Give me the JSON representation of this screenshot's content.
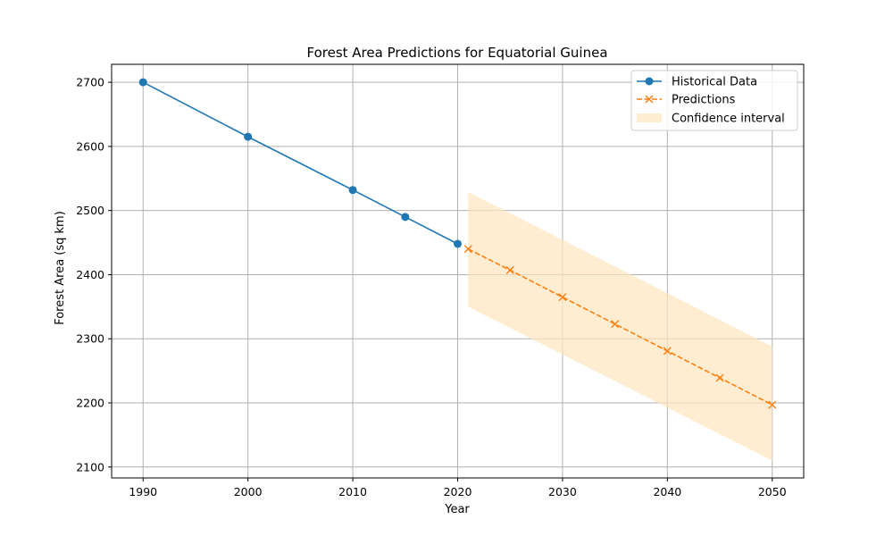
{
  "chart_data": {
    "type": "line",
    "title": "Forest Area Predictions for Equatorial Guinea",
    "xlabel": "Year",
    "ylabel": "Forest Area (sq km)",
    "xlim": [
      1987,
      2053
    ],
    "ylim": [
      2083,
      2728
    ],
    "xticks": [
      1990,
      2000,
      2010,
      2020,
      2030,
      2040,
      2050
    ],
    "yticks": [
      2100,
      2200,
      2300,
      2400,
      2500,
      2600,
      2700
    ],
    "grid": true,
    "legend_position": "top-right",
    "series": [
      {
        "name": "Historical Data",
        "style": "solid line with circle markers",
        "color": "#1f77b4",
        "x": [
          1990,
          2000,
          2010,
          2015,
          2020
        ],
        "y": [
          2700,
          2615,
          2532,
          2490,
          2448
        ]
      },
      {
        "name": "Predictions",
        "style": "dashed line with x markers",
        "color": "#ff7f0e",
        "x": [
          2021,
          2025,
          2030,
          2035,
          2040,
          2045,
          2050
        ],
        "y": [
          2440,
          2407,
          2365,
          2323,
          2281,
          2239,
          2197
        ]
      }
    ],
    "confidence_interval": {
      "name": "Confidence interval",
      "color": "#ffe5bf",
      "x": [
        2021,
        2050
      ],
      "lower": [
        2350,
        2110
      ],
      "upper": [
        2529,
        2288
      ]
    }
  }
}
